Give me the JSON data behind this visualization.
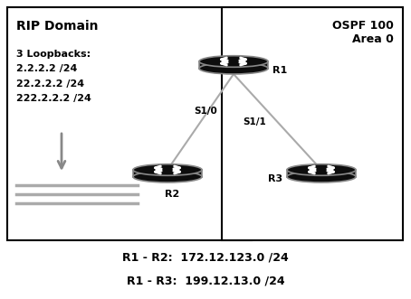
{
  "bg_color": "#ffffff",
  "box_color": "#000000",
  "rip_label": "RIP Domain",
  "ospf_label": "OSPF 100\nArea 0",
  "r1_label": "R1",
  "r2_label": "R2",
  "r3_label": "R3",
  "s10_label": "S1/0",
  "s11_label": "S1/1",
  "loopback_text": "3 Loopbacks:\n2.2.2.2 /24\n22.2.2.2 /24\n222.2.2.2 /24",
  "link_r1r2": "R1 - R2:  172.12.123.0 /24",
  "link_r1r3": "R1 - R3:  199.12.13.0 /24",
  "router_color": "#0d0d0d",
  "router_edge_color": "#888888",
  "line_color": "#aaaaaa",
  "arrow_color": "#888888"
}
